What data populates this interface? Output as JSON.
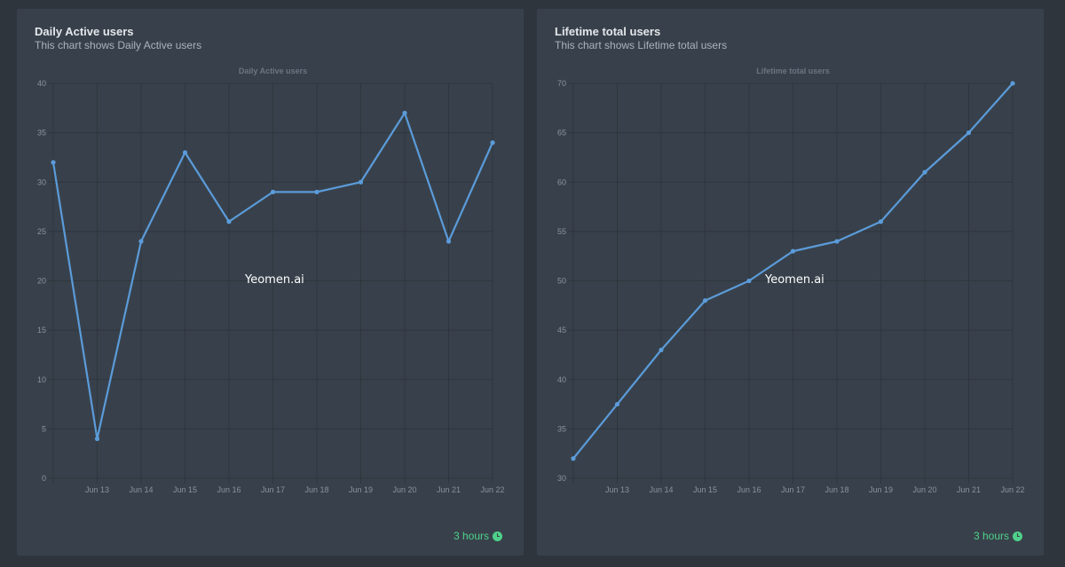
{
  "cards": [
    {
      "title": "Daily Active users",
      "subtitle": "This chart shows Daily Active users",
      "footer_time": "3 hours",
      "watermark": "Yeomen.ai"
    },
    {
      "title": "Lifetime total users",
      "subtitle": "This chart shows Lifetime total users",
      "footer_time": "3 hours",
      "watermark": "Yeomen.ai"
    }
  ],
  "colors": {
    "line": "#5b9bd9",
    "accent": "#4fd08a",
    "grid": "#2e353d"
  },
  "chart_data": [
    {
      "type": "line",
      "title": "Daily Active users",
      "categories": [
        "",
        "Jun 13",
        "Jun 14",
        "Jun 15",
        "Jun 16",
        "Jun 17",
        "Jun 18",
        "Jun 19",
        "Jun 20",
        "Jun 21",
        "Jun 22"
      ],
      "values": [
        32,
        4,
        24,
        33,
        26,
        29,
        29,
        30,
        37,
        24,
        34
      ],
      "yticks": [
        0,
        5,
        10,
        15,
        20,
        25,
        30,
        35,
        40
      ],
      "ylim": [
        0,
        40
      ],
      "xlabel": "",
      "ylabel": ""
    },
    {
      "type": "line",
      "title": "Lifetime total users",
      "categories": [
        "",
        "Jun 13",
        "Jun 14",
        "Jun 15",
        "Jun 16",
        "Jun 17",
        "Jun 18",
        "Jun 19",
        "Jun 20",
        "Jun 21",
        "Jun 22"
      ],
      "values": [
        32,
        37.5,
        43,
        48,
        50,
        53,
        54,
        56,
        61,
        65,
        70
      ],
      "yticks": [
        30,
        35,
        40,
        45,
        50,
        55,
        60,
        65,
        70
      ],
      "ylim": [
        30,
        70
      ],
      "xlabel": "",
      "ylabel": ""
    }
  ]
}
